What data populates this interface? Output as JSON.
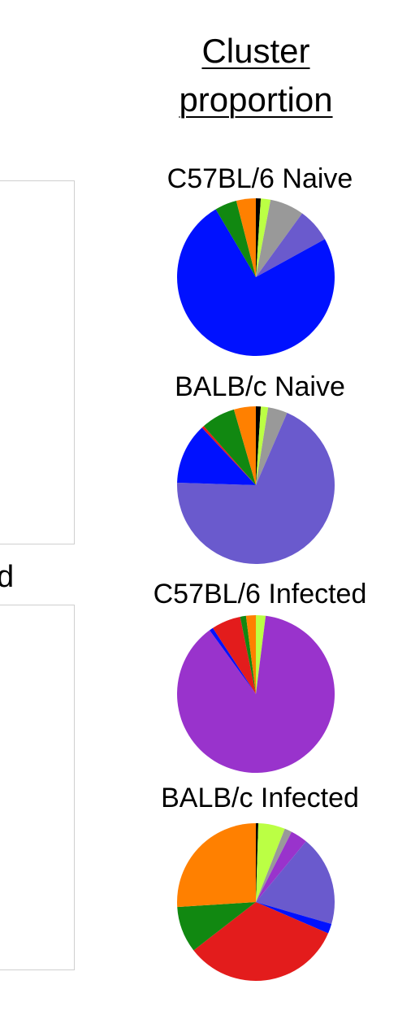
{
  "heading": {
    "line1": "Cluster",
    "line2": "proportion"
  },
  "left_panel": {
    "cut_label": "d"
  },
  "colors": {
    "black": "#000000",
    "lime": "#bbff44",
    "gray": "#999999",
    "slate_blue": "#6a5acd",
    "blue": "#0011ff",
    "red": "#e31c1c",
    "green": "#118811",
    "orange": "#ff8000",
    "purple": "#9933cc"
  },
  "chart_data": [
    {
      "type": "pie",
      "title": "C57BL/6 Naive",
      "slices": [
        {
          "color": "#000000",
          "value": 1.0
        },
        {
          "color": "#bbff44",
          "value": 2.0
        },
        {
          "color": "#999999",
          "value": 7.0
        },
        {
          "color": "#6a5acd",
          "value": 7.0
        },
        {
          "color": "#0011ff",
          "value": 74.5
        },
        {
          "color": "#118811",
          "value": 4.5
        },
        {
          "color": "#ff8000",
          "value": 4.0
        }
      ]
    },
    {
      "type": "pie",
      "title": "BALB/c Naive",
      "slices": [
        {
          "color": "#000000",
          "value": 1.0
        },
        {
          "color": "#bbff44",
          "value": 1.5
        },
        {
          "color": "#999999",
          "value": 4.0
        },
        {
          "color": "#6a5acd",
          "value": 69.0
        },
        {
          "color": "#0011ff",
          "value": 12.5
        },
        {
          "color": "#e31c1c",
          "value": 0.5
        },
        {
          "color": "#118811",
          "value": 7.0
        },
        {
          "color": "#ff8000",
          "value": 4.5
        }
      ]
    },
    {
      "type": "pie",
      "title": "C57BL/6 Infected",
      "slices": [
        {
          "color": "#bbff44",
          "value": 2.0
        },
        {
          "color": "#9933cc",
          "value": 88.0
        },
        {
          "color": "#0011ff",
          "value": 0.8
        },
        {
          "color": "#e31c1c",
          "value": 6.0
        },
        {
          "color": "#118811",
          "value": 1.2
        },
        {
          "color": "#ff8000",
          "value": 2.0
        }
      ]
    },
    {
      "type": "pie",
      "title": "BALB/c Infected",
      "slices": [
        {
          "color": "#000000",
          "value": 0.5
        },
        {
          "color": "#bbff44",
          "value": 5.5
        },
        {
          "color": "#999999",
          "value": 1.5
        },
        {
          "color": "#9933cc",
          "value": 3.5
        },
        {
          "color": "#6a5acd",
          "value": 18.5
        },
        {
          "color": "#0011ff",
          "value": 2.0
        },
        {
          "color": "#e31c1c",
          "value": 33.0
        },
        {
          "color": "#118811",
          "value": 9.5
        },
        {
          "color": "#ff8000",
          "value": 26.0
        }
      ]
    }
  ]
}
